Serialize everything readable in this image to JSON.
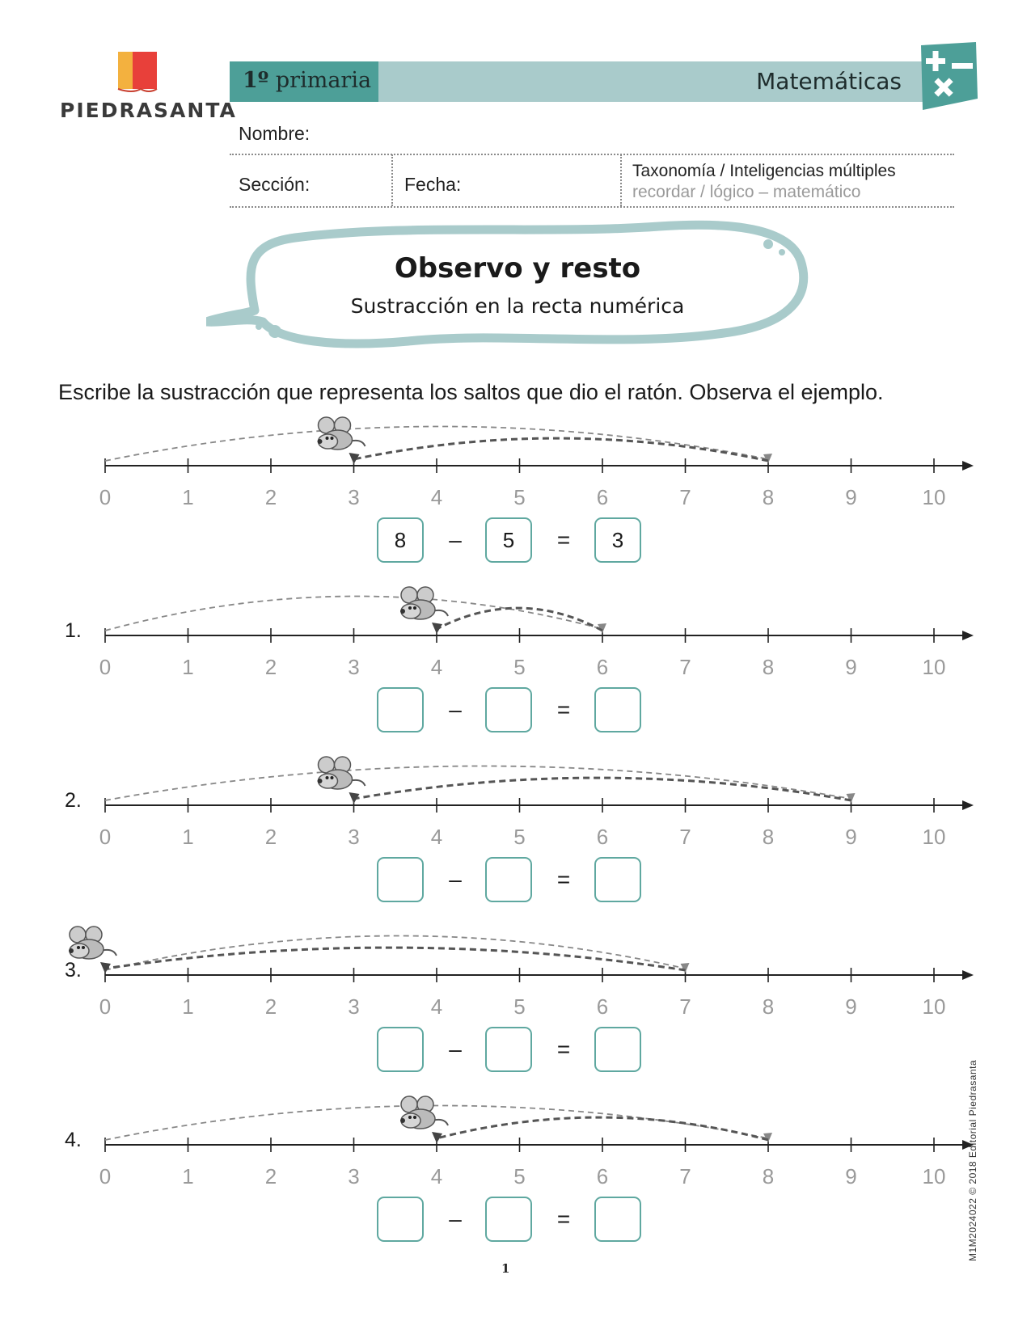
{
  "header": {
    "brand": "PIEDRASANTA",
    "grade_number": "1º",
    "grade_label": "primaria",
    "subject": "Matemáticas",
    "nombre_label": "Nombre:",
    "seccion_label": "Sección:",
    "fecha_label": "Fecha:",
    "taxonomy_title": "Taxonomía / Inteligencias múltiples",
    "taxonomy_values": "recordar / lógico – matemático"
  },
  "title": "Observo y resto",
  "subtitle": "Sustracción en la recta numérica",
  "instruction": "Escribe la sustracción que representa los saltos que dio el ratón. Observa el ejemplo.",
  "tick_labels": [
    "0",
    "1",
    "2",
    "3",
    "4",
    "5",
    "6",
    "7",
    "8",
    "9",
    "10"
  ],
  "exercises": [
    {
      "label": "",
      "start": 8,
      "end": 3,
      "minuend": "8",
      "subtrahend": "5",
      "result": "3"
    },
    {
      "label": "1.",
      "start": 6,
      "end": 4,
      "minuend": "",
      "subtrahend": "",
      "result": ""
    },
    {
      "label": "2.",
      "start": 9,
      "end": 3,
      "minuend": "",
      "subtrahend": "",
      "result": ""
    },
    {
      "label": "3.",
      "start": 7,
      "end": 0,
      "minuend": "",
      "subtrahend": "",
      "result": ""
    },
    {
      "label": "4.",
      "start": 8,
      "end": 4,
      "minuend": "",
      "subtrahend": "",
      "result": ""
    }
  ],
  "operators": {
    "minus": "–",
    "equals": "="
  },
  "footer": {
    "page_number": "1",
    "code": "M1M2024022  ©  2018 Editorial Piedrasanta"
  },
  "colors": {
    "teal_dark": "#4d9f98",
    "teal_light": "#a9cbcb",
    "box_border": "#5fa8a0",
    "tick_label": "#9a9a9a"
  }
}
